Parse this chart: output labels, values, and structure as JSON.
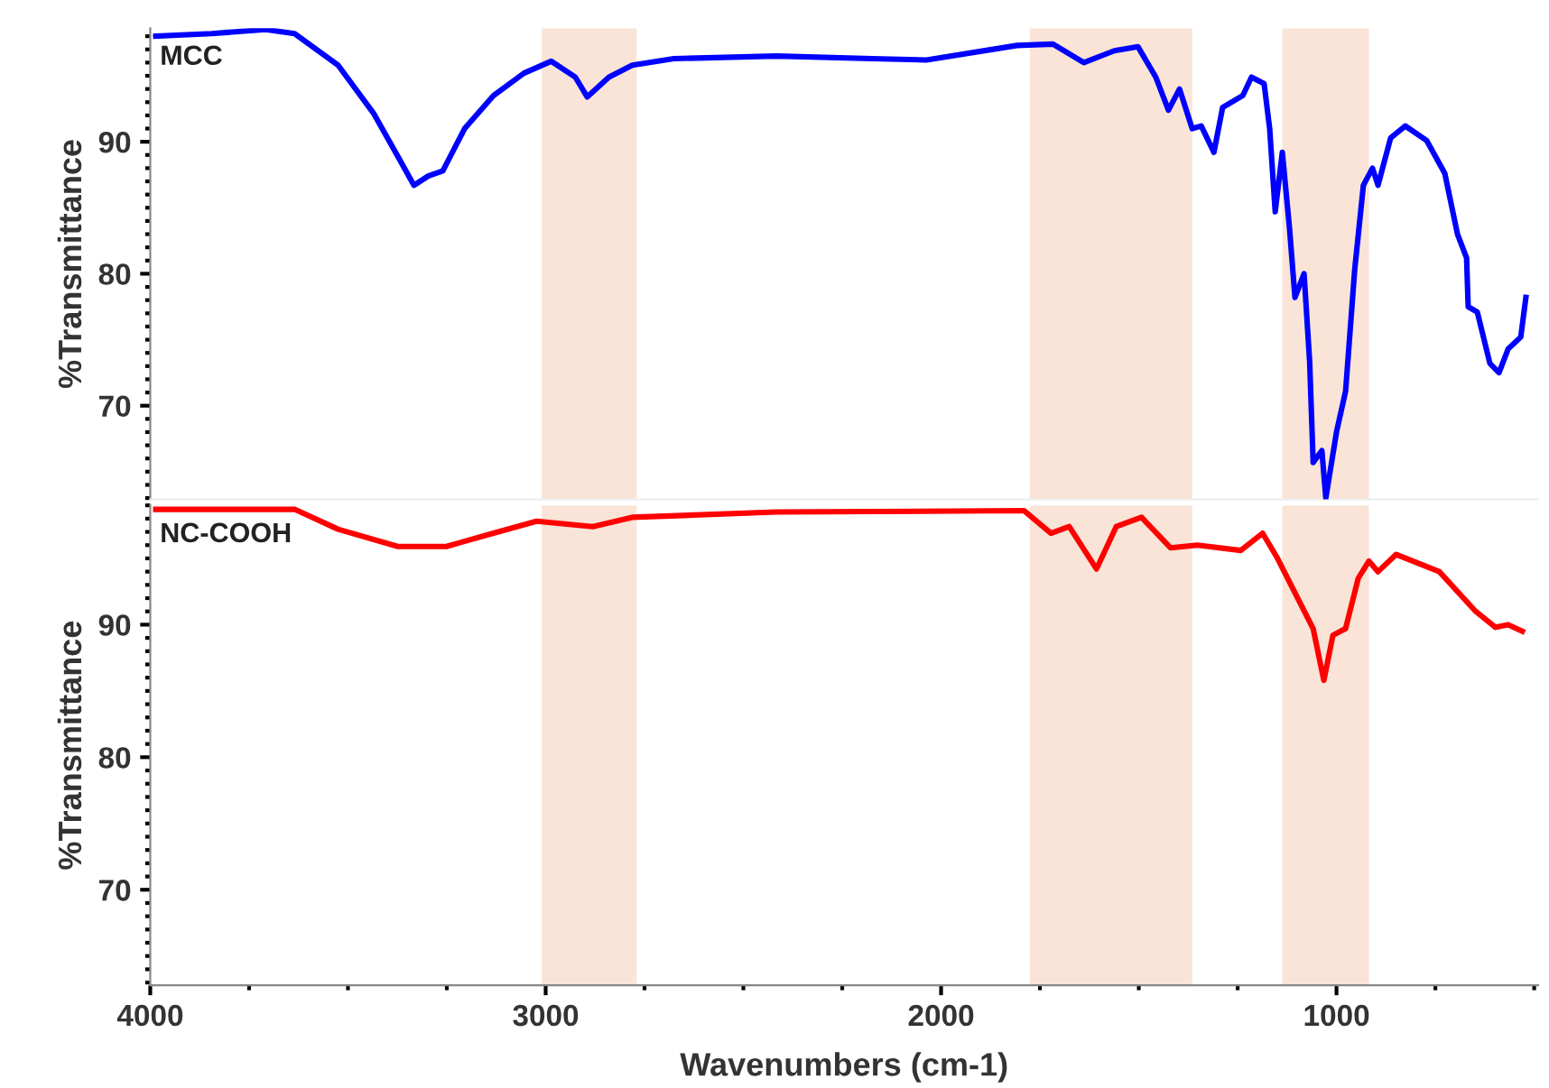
{
  "chart_data": [
    {
      "type": "line",
      "ylabel": "%Transmittance",
      "xlim": [
        4000,
        490
      ],
      "xticks": [
        4000,
        3000,
        2000,
        1000
      ],
      "ylim": [
        62.9,
        98.6
      ],
      "yticks": [
        70,
        80,
        90
      ],
      "tick_labels": "y",
      "grid": false,
      "legend": false,
      "bands": [
        {
          "axis": "x",
          "from": 3010,
          "to": 2770,
          "color": "#f9e4d7"
        },
        {
          "axis": "x",
          "from": 1776,
          "to": 1365,
          "color": "#f9e4d7"
        },
        {
          "axis": "x",
          "from": 1137,
          "to": 918,
          "color": "#f9e4d7"
        }
      ],
      "series": [
        {
          "name": "MCC",
          "color": "#0000ff",
          "x": [
            3986,
            3845,
            3708,
            3635,
            3525,
            3434,
            3374,
            3333,
            3297,
            3260,
            3205,
            3132,
            3055,
            2986,
            2925,
            2895,
            2840,
            2781,
            2676,
            2416,
            2174,
            2037,
            1808,
            1717,
            1639,
            1562,
            1502,
            1457,
            1425,
            1397,
            1365,
            1342,
            1310,
            1288,
            1237,
            1215,
            1183,
            1169,
            1155,
            1137,
            1119,
            1105,
            1082,
            1068,
            1059,
            1037,
            1027,
            1000,
            977,
            954,
            932,
            909,
            895,
            863,
            826,
            772,
            726,
            694,
            671,
            667,
            644,
            612,
            589,
            566,
            534,
            521
          ],
          "values": [
            98.0,
            98.2,
            98.5,
            98.2,
            95.8,
            92.1,
            88.9,
            86.7,
            87.4,
            87.8,
            91.0,
            93.5,
            95.2,
            96.1,
            94.9,
            93.4,
            94.9,
            95.8,
            96.3,
            96.5,
            96.3,
            96.2,
            97.3,
            97.4,
            96.0,
            96.9,
            97.2,
            94.9,
            92.4,
            94.0,
            91.0,
            91.2,
            89.2,
            92.6,
            93.5,
            94.9,
            94.4,
            91.0,
            84.7,
            89.2,
            83.5,
            78.2,
            80.0,
            73.4,
            65.7,
            66.6,
            63.0,
            68.0,
            71.1,
            80.3,
            86.7,
            88.0,
            86.7,
            90.3,
            91.2,
            90.1,
            87.6,
            83.0,
            81.2,
            77.5,
            77.1,
            73.2,
            72.5,
            74.3,
            75.2,
            78.2
          ]
        }
      ]
    },
    {
      "type": "line",
      "ylabel": "%Transmittance",
      "xlabel": "Wavenumbers (cm-1)",
      "xlim": [
        4000,
        490
      ],
      "xticks": [
        4000,
        3000,
        2000,
        1000
      ],
      "ylim": [
        62.8,
        99.0
      ],
      "yticks": [
        70,
        80,
        90
      ],
      "grid": false,
      "legend": false,
      "bands": [
        {
          "axis": "x",
          "from": 3010,
          "to": 2770,
          "color": "#f9e4d7"
        },
        {
          "axis": "x",
          "from": 1776,
          "to": 1365,
          "color": "#f9e4d7"
        },
        {
          "axis": "x",
          "from": 1137,
          "to": 918,
          "color": "#f9e4d7"
        }
      ],
      "series": [
        {
          "name": "NC-COOH",
          "color": "#ff0000",
          "x": [
            3986,
            3635,
            3525,
            3374,
            3251,
            3132,
            3023,
            2881,
            2781,
            2416,
            1790,
            1722,
            1676,
            1607,
            1557,
            1493,
            1420,
            1352,
            1242,
            1187,
            1151,
            1105,
            1059,
            1032,
            1009,
            977,
            945,
            918,
            895,
            849,
            740,
            648,
            598,
            566,
            530
          ],
          "values": [
            98.7,
            98.7,
            97.2,
            95.9,
            95.9,
            96.9,
            97.8,
            97.4,
            98.1,
            98.5,
            98.6,
            96.9,
            97.4,
            94.2,
            97.4,
            98.1,
            95.8,
            96.0,
            95.6,
            96.9,
            95.1,
            92.4,
            89.7,
            85.8,
            89.2,
            89.7,
            93.5,
            94.8,
            94.0,
            95.3,
            94.0,
            91.0,
            89.8,
            90.0,
            89.5
          ]
        }
      ]
    }
  ]
}
